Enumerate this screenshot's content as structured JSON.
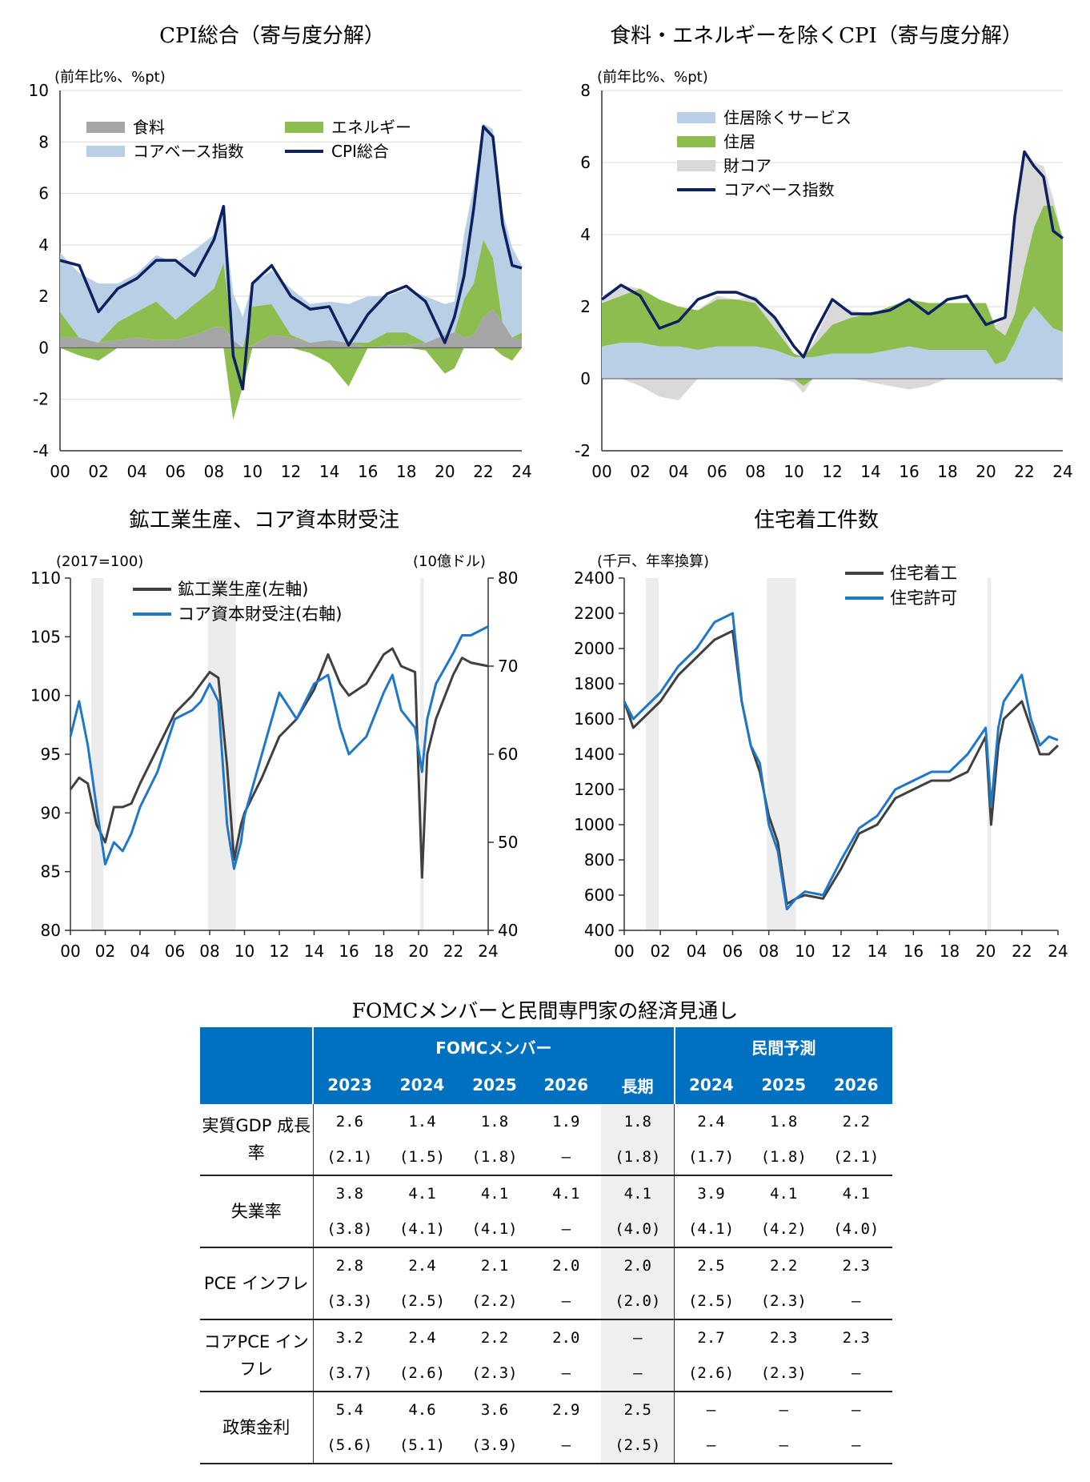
{
  "charts": [
    {
      "title": "CPI総合（寄与度分解）",
      "unit_label": "(前年比%、%pt)",
      "chart_data": {
        "type": "area",
        "title": "CPI総合（寄与度分解）",
        "ylim": [
          -4,
          10
        ],
        "yticks": [
          -4,
          -2,
          0,
          2,
          4,
          6,
          8,
          10
        ],
        "x_tick_labels": [
          "00",
          "02",
          "04",
          "06",
          "08",
          "10",
          "12",
          "14",
          "16",
          "18",
          "20",
          "22",
          "24"
        ],
        "xlim": [
          2000,
          2024
        ],
        "x": [
          2000,
          2001,
          2002,
          2003,
          2004,
          2005,
          2006,
          2007,
          2008,
          2008.5,
          2009,
          2009.5,
          2010,
          2011,
          2012,
          2013,
          2014,
          2015,
          2016,
          2017,
          2018,
          2019,
          2020,
          2020.5,
          2021,
          2021.5,
          2022,
          2022.5,
          2023,
          2023.5,
          2024
        ],
        "series": [
          {
            "name": "食料",
            "color": "#a6a6a6",
            "values": [
              0.4,
              0.4,
              0.2,
              0.3,
              0.4,
              0.3,
              0.3,
              0.5,
              0.8,
              0.8,
              0.3,
              0,
              0.1,
              0.5,
              0.4,
              0.2,
              0.3,
              0.2,
              0,
              0.1,
              0.1,
              0.2,
              0.5,
              0.6,
              0.4,
              0.5,
              1.2,
              1.5,
              1,
              0.4,
              0.3
            ]
          },
          {
            "name": "エネルギー",
            "color": "#8cbd4e",
            "values": [
              1,
              -0.3,
              -0.5,
              0.7,
              1,
              1.5,
              0.8,
              1.2,
              1.5,
              2.5,
              -2.8,
              -1.5,
              1.5,
              1.2,
              0.1,
              -0.2,
              -0.6,
              -1.5,
              0.2,
              0.5,
              0.5,
              -0.1,
              -1,
              -0.8,
              1.5,
              2,
              3,
              2,
              -0.3,
              -0.5,
              0.3
            ]
          },
          {
            "name": "コアベース指数",
            "color": "#b8cfe6",
            "values": [
              2.3,
              2.5,
              2.3,
              1.5,
              1.5,
              1.8,
              2.2,
              2.1,
              2.1,
              1.9,
              1.8,
              1.2,
              0.9,
              1.3,
              1.8,
              1.5,
              1.5,
              1.5,
              1.8,
              1.4,
              1.7,
              1.8,
              1.2,
              1.2,
              2.5,
              3.8,
              4.5,
              5,
              4.3,
              3.5,
              2.6
            ]
          },
          {
            "name": "CPI総合",
            "color": "#0d2160",
            "type": "line",
            "values": [
              3.4,
              3.2,
              1.4,
              2.3,
              2.7,
              3.4,
              3.4,
              2.8,
              4.2,
              5.5,
              -0.3,
              -1.6,
              2.5,
              3.2,
              2,
              1.5,
              1.6,
              0.1,
              1.3,
              2.1,
              2.4,
              1.8,
              0.2,
              1.2,
              2.8,
              5.4,
              8.6,
              8.2,
              4.8,
              3.2,
              3.1
            ]
          }
        ],
        "legend": [
          "食料",
          "エネルギー",
          "コアベース指数",
          "CPI総合"
        ]
      }
    },
    {
      "title": "食料・エネルギーを除くCPI（寄与度分解）",
      "unit_label": "(前年比%、%pt)",
      "chart_data": {
        "type": "area",
        "title": "食料・エネルギーを除くCPI（寄与度分解）",
        "ylim": [
          -2,
          8
        ],
        "yticks": [
          -2,
          0,
          2,
          4,
          6,
          8
        ],
        "x_tick_labels": [
          "00",
          "02",
          "04",
          "06",
          "08",
          "10",
          "12",
          "14",
          "16",
          "18",
          "20",
          "22",
          "24"
        ],
        "xlim": [
          2000,
          2024
        ],
        "x": [
          2000,
          2001,
          2002,
          2003,
          2004,
          2005,
          2006,
          2007,
          2008,
          2009,
          2010,
          2010.5,
          2011,
          2012,
          2013,
          2014,
          2015,
          2016,
          2017,
          2018,
          2019,
          2020,
          2020.5,
          2021,
          2021.5,
          2022,
          2022.5,
          2023,
          2023.5,
          2024
        ],
        "series": [
          {
            "name": "住居除くサービス",
            "color": "#b8cfe6",
            "values": [
              0.9,
              1,
              1,
              0.9,
              0.9,
              0.8,
              0.9,
              0.9,
              0.9,
              0.8,
              0.6,
              0.6,
              0.6,
              0.7,
              0.7,
              0.7,
              0.8,
              0.9,
              0.8,
              0.8,
              0.8,
              0.8,
              0.4,
              0.5,
              1,
              1.6,
              2,
              1.7,
              1.4,
              1.3
            ]
          },
          {
            "name": "住居",
            "color": "#8cbd4e",
            "values": [
              1.2,
              1.3,
              1.5,
              1.3,
              1.1,
              1.1,
              1.3,
              1.3,
              1.2,
              0.6,
              0.1,
              -0.2,
              0.3,
              0.8,
              1,
              1.1,
              1.2,
              1.3,
              1.3,
              1.3,
              1.3,
              1.3,
              1,
              0.7,
              0.8,
              1.5,
              2.2,
              3.1,
              3.4,
              2.6
            ]
          },
          {
            "name": "財コア",
            "color": "#d9d9d9",
            "values": [
              0.2,
              0.3,
              -0.2,
              -0.5,
              -0.6,
              0,
              0.1,
              0,
              0.2,
              0.3,
              -0.1,
              -0.2,
              0.1,
              0.6,
              0.2,
              -0.1,
              -0.2,
              -0.3,
              -0.2,
              0,
              0,
              0,
              0.1,
              0.5,
              2.5,
              3.1,
              1.8,
              1.1,
              0.2,
              -0.1
            ]
          },
          {
            "name": "コアベース指数",
            "color": "#0d2160",
            "type": "line",
            "values": [
              2.2,
              2.6,
              2.3,
              1.4,
              1.6,
              2.2,
              2.4,
              2.4,
              2.2,
              1.7,
              0.9,
              0.6,
              1.2,
              2.2,
              1.8,
              1.8,
              1.9,
              2.2,
              1.8,
              2.2,
              2.3,
              1.5,
              1.6,
              1.7,
              4.5,
              6.3,
              5.9,
              5.6,
              4.1,
              3.9
            ]
          }
        ],
        "legend": [
          "住居除くサービス",
          "住居",
          "財コア",
          "コアベース指数"
        ]
      }
    },
    {
      "title": "鉱工業生産、コア資本財受注",
      "unit_label_left": "(2017=100)",
      "unit_label_right": "(10億ドル)",
      "chart_data": {
        "type": "line",
        "title": "鉱工業生産、コア資本財受注",
        "ylim": [
          80,
          110
        ],
        "yticks": [
          80,
          85,
          90,
          95,
          100,
          105,
          110
        ],
        "y2lim": [
          40,
          80
        ],
        "y2ticks": [
          40,
          50,
          60,
          70,
          80
        ],
        "x_tick_labels": [
          "00",
          "02",
          "04",
          "06",
          "08",
          "10",
          "12",
          "14",
          "16",
          "18",
          "20",
          "22",
          "24"
        ],
        "xlim": [
          2000,
          2024
        ],
        "recessions": [
          [
            2001.2,
            2001.9
          ],
          [
            2007.9,
            2009.5
          ],
          [
            2020.1,
            2020.3
          ]
        ],
        "x": [
          2000,
          2000.5,
          2001,
          2001.5,
          2002,
          2002.5,
          2003,
          2003.5,
          2004,
          2005,
          2006,
          2007,
          2007.5,
          2008,
          2008.5,
          2009,
          2009.4,
          2009.8,
          2010,
          2011,
          2012,
          2013,
          2014,
          2014.8,
          2015.5,
          2016,
          2017,
          2018,
          2018.5,
          2019,
          2019.8,
          2020.2,
          2020.5,
          2021,
          2022,
          2022.5,
          2023,
          2024
        ],
        "series": [
          {
            "name": "鉱工業生産(左軸)",
            "color": "#404040",
            "axis": "left",
            "values": [
              92,
              93,
              92.5,
              89,
              87.5,
              90.5,
              90.5,
              90.8,
              92.5,
              95.5,
              98.5,
              100,
              101,
              102,
              101.5,
              94,
              86,
              89,
              90,
              93,
              96.5,
              98,
              100.5,
              103.5,
              101,
              100,
              101,
              103.5,
              104,
              102.5,
              102,
              84.5,
              95,
              98,
              101.8,
              103.2,
              102.8,
              102.5
            ]
          },
          {
            "name": "コア資本財受注(右軸)",
            "color": "#1f77c8",
            "axis": "right",
            "values": [
              62,
              66,
              61,
              54,
              47.5,
              50,
              49,
              51,
              54,
              58,
              64,
              65,
              66,
              68,
              66,
              52,
              47,
              50,
              53,
              60,
              67,
              64,
              68,
              69,
              63,
              60,
              62,
              67,
              69,
              65,
              63,
              58,
              64,
              68,
              71.5,
              73.5,
              73.5,
              74.5
            ]
          }
        ],
        "legend": [
          "鉱工業生産(左軸)",
          "コア資本財受注(右軸)"
        ]
      }
    },
    {
      "title": "住宅着工件数",
      "unit_label": "(千戸、年率換算)",
      "chart_data": {
        "type": "line",
        "title": "住宅着工件数",
        "ylim": [
          400,
          2400
        ],
        "yticks": [
          400,
          600,
          800,
          1000,
          1200,
          1400,
          1600,
          1800,
          2000,
          2200,
          2400
        ],
        "x_tick_labels": [
          "00",
          "02",
          "04",
          "06",
          "08",
          "10",
          "12",
          "14",
          "16",
          "18",
          "20",
          "22",
          "24"
        ],
        "xlim": [
          2000,
          2024
        ],
        "recessions": [
          [
            2001.2,
            2001.9
          ],
          [
            2007.9,
            2009.5
          ],
          [
            2020.1,
            2020.3
          ]
        ],
        "x": [
          2000,
          2000.5,
          2001,
          2002,
          2003,
          2004,
          2005,
          2006,
          2006.5,
          2007,
          2007.5,
          2008,
          2008.5,
          2009,
          2009.5,
          2010,
          2011,
          2012,
          2013,
          2014,
          2015,
          2016,
          2017,
          2018,
          2019,
          2020,
          2020.3,
          2020.7,
          2021,
          2022,
          2022.5,
          2023,
          2023.5,
          2024
        ],
        "series": [
          {
            "name": "住宅着工",
            "color": "#404040",
            "values": [
              1700,
              1550,
              1600,
              1700,
              1850,
              1950,
              2050,
              2100,
              1700,
              1450,
              1300,
              1050,
              900,
              550,
              580,
              600,
              580,
              750,
              950,
              1000,
              1150,
              1200,
              1250,
              1250,
              1300,
              1500,
              1000,
              1450,
              1600,
              1700,
              1550,
              1400,
              1400,
              1450
            ]
          },
          {
            "name": "住宅許可",
            "color": "#1f77c8",
            "values": [
              1700,
              1600,
              1650,
              1750,
              1900,
              2000,
              2150,
              2200,
              1700,
              1450,
              1350,
              1000,
              850,
              520,
              580,
              620,
              600,
              800,
              980,
              1050,
              1200,
              1250,
              1300,
              1300,
              1400,
              1550,
              1100,
              1550,
              1700,
              1850,
              1600,
              1450,
              1500,
              1480
            ]
          }
        ],
        "legend": [
          "住宅着工",
          "住宅許可"
        ]
      }
    }
  ],
  "table": {
    "title": "FOMCメンバーと民間専門家の経済見通し",
    "group_fomc": "FOMCメンバー",
    "group_private": "民間予測",
    "columns": [
      "2023",
      "2024",
      "2025",
      "2026",
      "長期",
      "2024",
      "2025",
      "2026"
    ],
    "rows": [
      {
        "label": "実質GDP 成長率",
        "top": [
          "2.6",
          "1.4",
          "1.8",
          "1.9",
          "1.8",
          "2.4",
          "1.8",
          "2.2"
        ],
        "bottom": [
          "(2.1)",
          "(1.5)",
          "(1.8)",
          "–",
          "(1.8)",
          "(1.7)",
          "(1.8)",
          "(2.1)"
        ]
      },
      {
        "label": "失業率",
        "top": [
          "3.8",
          "4.1",
          "4.1",
          "4.1",
          "4.1",
          "3.9",
          "4.1",
          "4.1"
        ],
        "bottom": [
          "(3.8)",
          "(4.1)",
          "(4.1)",
          "–",
          "(4.0)",
          "(4.1)",
          "(4.2)",
          "(4.0)"
        ]
      },
      {
        "label": "PCE インフレ",
        "top": [
          "2.8",
          "2.4",
          "2.1",
          "2.0",
          "2.0",
          "2.5",
          "2.2",
          "2.3"
        ],
        "bottom": [
          "(3.3)",
          "(2.5)",
          "(2.2)",
          "–",
          "(2.0)",
          "(2.5)",
          "(2.3)",
          "–"
        ]
      },
      {
        "label": "コアPCE インフレ",
        "top": [
          "3.2",
          "2.4",
          "2.2",
          "2.0",
          "–",
          "2.7",
          "2.3",
          "2.3"
        ],
        "bottom": [
          "(3.7)",
          "(2.6)",
          "(2.3)",
          "–",
          "–",
          "(2.6)",
          "(2.3)",
          "–"
        ]
      },
      {
        "label": "政策金利",
        "top": [
          "5.4",
          "4.6",
          "3.6",
          "2.9",
          "2.5",
          "–",
          "–",
          "–"
        ],
        "bottom": [
          "(5.6)",
          "(5.1)",
          "(3.9)",
          "–",
          "(2.5)",
          "–",
          "–",
          "–"
        ]
      }
    ]
  }
}
